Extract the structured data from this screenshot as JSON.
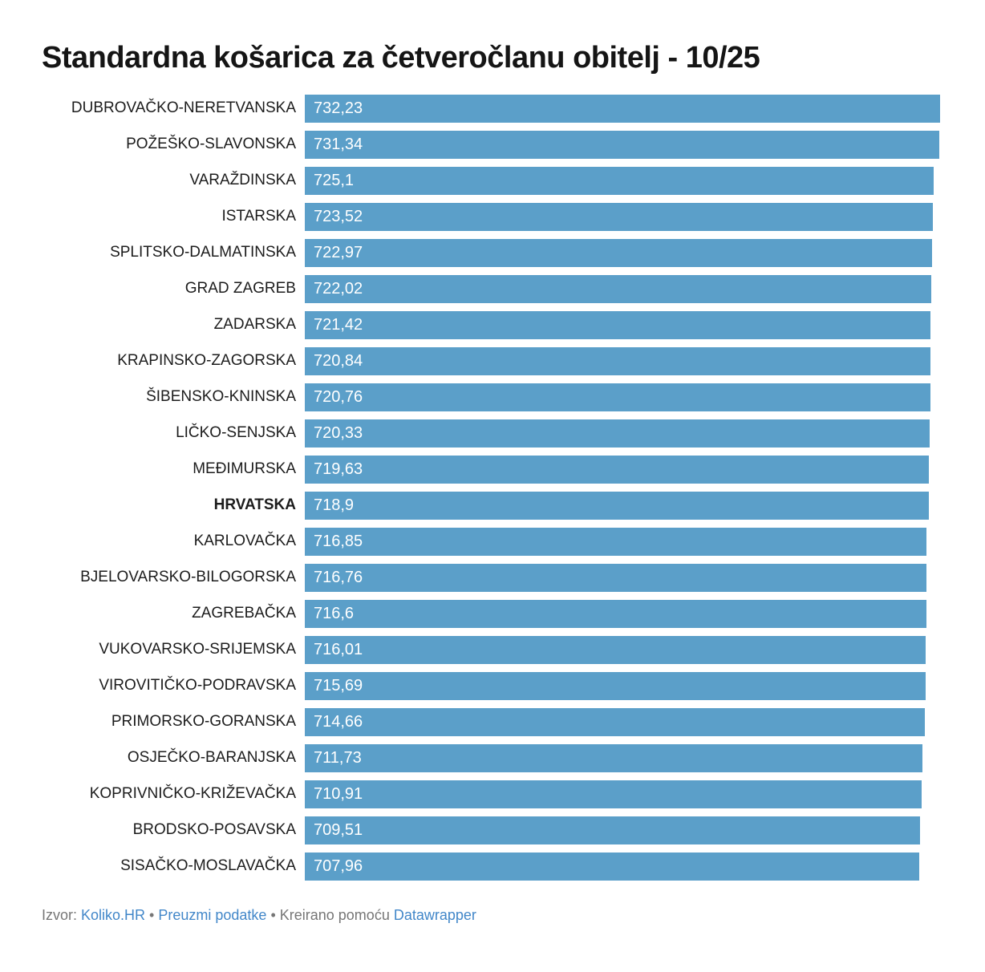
{
  "title": "Standardna košarica za četveročlanu obitelj - 10/25",
  "chart_data": {
    "type": "bar",
    "orientation": "horizontal",
    "title": "Standardna košarica za četveročlanu obitelj - 10/25",
    "categories": [
      "DUBROVAČKO-NERETVANSKA",
      "POŽEŠKO-SLAVONSKA",
      "VARAŽDINSKA",
      "ISTARSKA",
      "SPLITSKO-DALMATINSKA",
      "GRAD ZAGREB",
      "ZADARSKA",
      "KRAPINSKO-ZAGORSKA",
      "ŠIBENSKO-KNINSKA",
      "LIČKO-SENJSKA",
      "MEĐIMURSKA",
      "HRVATSKA",
      "KARLOVAČKA",
      "BJELOVARSKO-BILOGORSKA",
      "ZAGREBAČKA",
      "VUKOVARSKO-SRIJEMSKA",
      "VIROVITIČKO-PODRAVSKA",
      "PRIMORSKO-GORANSKA",
      "OSJEČKO-BARANJSKA",
      "KOPRIVNIČKO-KRIŽEVAČKA",
      "BRODSKO-POSAVSKA",
      "SISAČKO-MOSLAVAČKA"
    ],
    "values": [
      732.23,
      731.34,
      725.1,
      723.52,
      722.97,
      722.02,
      721.42,
      720.84,
      720.76,
      720.33,
      719.63,
      718.9,
      716.85,
      716.76,
      716.6,
      716.01,
      715.69,
      714.66,
      711.73,
      710.91,
      709.51,
      707.96
    ],
    "value_labels": [
      "732,23",
      "731,34",
      "725,1",
      "723,52",
      "722,97",
      "722,02",
      "721,42",
      "720,84",
      "720,76",
      "720,33",
      "719,63",
      "718,9",
      "716,85",
      "716,76",
      "716,6",
      "716,01",
      "715,69",
      "714,66",
      "711,73",
      "710,91",
      "709,51",
      "707,96"
    ],
    "emphasized_category": "HRVATSKA",
    "xlim": [
      0,
      732.23
    ],
    "grid": false,
    "legend": false,
    "bar_color": "#5b9fc9",
    "value_label_color": "#ffffff"
  },
  "footer": {
    "source_label": "Izvor:",
    "source_link": "Koliko.HR",
    "separator": "•",
    "download_link": "Preuzmi podatke",
    "created_with": "Kreirano pomoću",
    "tool_link": "Datawrapper"
  },
  "colors": {
    "bar": "#5b9fc9",
    "title": "#151515",
    "category_label": "#1c1c1c",
    "footer_text": "#767676",
    "link": "#4287c9"
  }
}
